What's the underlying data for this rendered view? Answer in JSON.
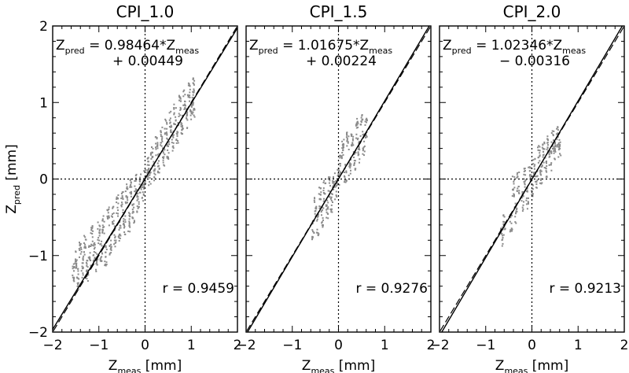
{
  "chart_data": [
    {
      "type": "scatter",
      "title": "CPI_1.0",
      "xlabel": "Z_meas [mm]",
      "ylabel": "Z_pred [mm]",
      "xlim": [
        -2,
        2
      ],
      "ylim": [
        -2,
        2
      ],
      "xticks": [
        "−2",
        "−1",
        "0",
        "1",
        "2"
      ],
      "yticks": [
        "−2",
        "−1",
        "0",
        "1",
        "2"
      ],
      "fit": {
        "slope": 0.98464,
        "intercept": 0.00449,
        "line1": {
          "pre": "Z",
          "sub1": "pred",
          "mid": " = 0.98464*Z",
          "sub2": "meas"
        },
        "line2": "+ 0.00449"
      },
      "r_label": "r = 0.9459",
      "r": 0.9459,
      "series": [
        {
          "values": [
            [
              -1.55,
              -1.25
            ],
            [
              -1.5,
              -1.05
            ],
            [
              -1.45,
              -1.3
            ],
            [
              -1.4,
              -0.95
            ],
            [
              -1.35,
              -1.15
            ],
            [
              -1.3,
              -0.85
            ],
            [
              -1.25,
              -1.2
            ],
            [
              -1.2,
              -1.0
            ],
            [
              -1.15,
              -0.75
            ],
            [
              -1.1,
              -0.95
            ],
            [
              -1.05,
              -1.1
            ],
            [
              -1.0,
              -0.7
            ],
            [
              -0.95,
              -0.95
            ],
            [
              -0.9,
              -0.6
            ],
            [
              -0.85,
              -1.0
            ],
            [
              -0.8,
              -0.5
            ],
            [
              -0.75,
              -0.85
            ],
            [
              -0.7,
              -0.45
            ],
            [
              -0.65,
              -0.75
            ],
            [
              -0.6,
              -0.35
            ],
            [
              -0.55,
              -0.7
            ],
            [
              -0.5,
              -0.3
            ],
            [
              -0.45,
              -0.6
            ],
            [
              -0.4,
              -0.2
            ],
            [
              -0.35,
              -0.55
            ],
            [
              -0.3,
              -0.1
            ],
            [
              -0.25,
              -0.45
            ],
            [
              -0.2,
              -0.05
            ],
            [
              -0.15,
              -0.3
            ],
            [
              -0.1,
              -0.05
            ],
            [
              -0.05,
              -0.15
            ],
            [
              0.0,
              0.0
            ],
            [
              0.05,
              0.15
            ],
            [
              0.1,
              0.05
            ],
            [
              0.15,
              0.3
            ],
            [
              0.2,
              0.1
            ],
            [
              0.25,
              0.45
            ],
            [
              0.3,
              0.2
            ],
            [
              0.35,
              0.55
            ],
            [
              0.4,
              0.3
            ],
            [
              0.45,
              0.65
            ],
            [
              0.5,
              0.4
            ],
            [
              0.55,
              0.75
            ],
            [
              0.6,
              0.5
            ],
            [
              0.65,
              0.85
            ],
            [
              0.7,
              0.6
            ],
            [
              0.75,
              0.95
            ],
            [
              0.8,
              0.7
            ],
            [
              0.85,
              1.05
            ],
            [
              0.9,
              0.8
            ],
            [
              0.95,
              1.15
            ],
            [
              1.0,
              0.9
            ],
            [
              1.05,
              1.2
            ],
            [
              1.05,
              0.95
            ]
          ]
        }
      ]
    },
    {
      "type": "scatter",
      "title": "CPI_1.5",
      "xlabel": "Z_meas [mm]",
      "ylabel": "",
      "xlim": [
        -2,
        2
      ],
      "ylim": [
        -2,
        2
      ],
      "xticks": [
        "−2",
        "−1",
        "0",
        "1",
        "2"
      ],
      "yticks": [],
      "fit": {
        "slope": 1.01675,
        "intercept": 0.00224,
        "line1": {
          "pre": "Z",
          "sub1": "pred",
          "mid": " = 1.01675*Z",
          "sub2": "meas"
        },
        "line2": "+ 0.00224"
      },
      "r_label": "r = 0.9276",
      "r": 0.9276,
      "series": [
        {
          "values": [
            [
              -0.55,
              -0.65
            ],
            [
              -0.5,
              -0.35
            ],
            [
              -0.45,
              -0.6
            ],
            [
              -0.4,
              -0.25
            ],
            [
              -0.35,
              -0.5
            ],
            [
              -0.3,
              -0.15
            ],
            [
              -0.25,
              -0.4
            ],
            [
              -0.2,
              -0.1
            ],
            [
              -0.15,
              -0.3
            ],
            [
              -0.1,
              -0.05
            ],
            [
              -0.05,
              -0.15
            ],
            [
              0.0,
              0.05
            ],
            [
              0.05,
              0.2
            ],
            [
              0.1,
              0.45
            ],
            [
              0.15,
              0.05
            ],
            [
              0.2,
              0.5
            ],
            [
              0.25,
              0.15
            ],
            [
              0.3,
              0.55
            ],
            [
              0.35,
              0.25
            ],
            [
              0.4,
              0.65
            ],
            [
              0.45,
              0.35
            ],
            [
              0.5,
              0.7
            ],
            [
              0.55,
              0.45
            ],
            [
              0.6,
              0.65
            ]
          ]
        }
      ]
    },
    {
      "type": "scatter",
      "title": "CPI_2.0",
      "xlabel": "Z_meas [mm]",
      "ylabel": "",
      "xlim": [
        -2,
        2
      ],
      "ylim": [
        -2,
        2
      ],
      "xticks": [
        "−2",
        "−1",
        "0",
        "1",
        "2"
      ],
      "yticks": [],
      "fit": {
        "slope": 1.02346,
        "intercept": -0.00316,
        "line1": {
          "pre": "Z",
          "sub1": "pred",
          "mid": " = 1.02346*Z",
          "sub2": "meas"
        },
        "line2": "− 0.00316"
      },
      "r_label": "r = 0.9213",
      "r": 0.9213,
      "series": [
        {
          "values": [
            [
              -0.65,
              -0.75
            ],
            [
              -0.6,
              -0.6
            ],
            [
              -0.45,
              -0.55
            ],
            [
              -0.4,
              -0.1
            ],
            [
              -0.35,
              -0.45
            ],
            [
              -0.3,
              -0.05
            ],
            [
              -0.2,
              -0.3
            ],
            [
              -0.15,
              0.0
            ],
            [
              -0.1,
              -0.25
            ],
            [
              -0.05,
              0.05
            ],
            [
              0.0,
              -0.1
            ],
            [
              0.05,
              0.15
            ],
            [
              0.1,
              0.0
            ],
            [
              0.15,
              0.3
            ],
            [
              0.2,
              0.05
            ],
            [
              0.25,
              0.35
            ],
            [
              0.3,
              0.15
            ],
            [
              0.35,
              0.45
            ],
            [
              0.4,
              0.25
            ],
            [
              0.45,
              0.5
            ],
            [
              0.5,
              0.35
            ],
            [
              0.55,
              0.55
            ],
            [
              0.6,
              0.4
            ]
          ]
        }
      ]
    }
  ]
}
